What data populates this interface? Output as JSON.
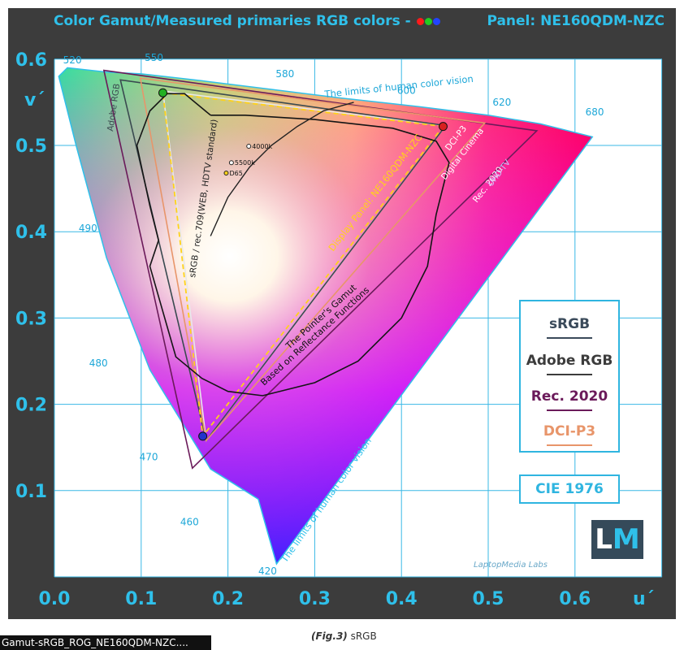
{
  "header": {
    "title": "Color Gamut/Measured primaries RGB colors -",
    "panel": "Panel: NE160QDM-NZC",
    "dot_colors": [
      "#ff1a1a",
      "#22cc22",
      "#2244ff"
    ]
  },
  "chart_data": {
    "type": "scatter",
    "title": "Color Gamut/Measured primaries RGB colors -",
    "xlabel": "u´",
    "ylabel": "v´",
    "xlim": [
      0,
      0.7
    ],
    "ylim": [
      0,
      0.6
    ],
    "x_ticks": [
      "0.0",
      "0.1",
      "0.2",
      "0.3",
      "0.4",
      "0.5",
      "0.6"
    ],
    "y_ticks": [
      "0.1",
      "0.2",
      "0.3",
      "0.4",
      "0.5",
      "0.6"
    ],
    "grid": true,
    "series": [
      {
        "name": "sRGB",
        "color": "#e8e8e8",
        "points": [
          [
            0.451,
            0.523
          ],
          [
            0.125,
            0.563
          ],
          [
            0.175,
            0.158
          ]
        ]
      },
      {
        "name": "Adobe RGB",
        "color": "#3a4a50",
        "points": [
          [
            0.451,
            0.523
          ],
          [
            0.076,
            0.576
          ],
          [
            0.175,
            0.158
          ]
        ]
      },
      {
        "name": "Rec. 2020",
        "color": "#6b1a5a",
        "points": [
          [
            0.556,
            0.517
          ],
          [
            0.057,
            0.587
          ],
          [
            0.159,
            0.126
          ]
        ]
      },
      {
        "name": "DCI-P3",
        "color": "#e8956a",
        "points": [
          [
            0.496,
            0.526
          ],
          [
            0.099,
            0.578
          ],
          [
            0.175,
            0.158
          ]
        ]
      },
      {
        "name": "Display Panel: NE160QDM-NZC",
        "color": "#ffd21a",
        "points": [
          [
            0.448,
            0.522
          ],
          [
            0.125,
            0.561
          ],
          [
            0.171,
            0.163
          ]
        ]
      }
    ],
    "measured_primaries": [
      {
        "color": "#d82020",
        "u": 0.448,
        "v": 0.522
      },
      {
        "color": "#22b022",
        "u": 0.125,
        "v": 0.561
      },
      {
        "color": "#2233cc",
        "u": 0.171,
        "v": 0.163
      }
    ],
    "locus": [
      [
        0.256,
        0.015
      ],
      [
        0.235,
        0.09
      ],
      [
        0.18,
        0.125
      ],
      [
        0.11,
        0.24
      ],
      [
        0.06,
        0.37
      ],
      [
        0.025,
        0.5
      ],
      [
        0.005,
        0.58
      ],
      [
        0.015,
        0.59
      ],
      [
        0.06,
        0.585
      ],
      [
        0.1,
        0.583
      ],
      [
        0.17,
        0.575
      ],
      [
        0.25,
        0.565
      ],
      [
        0.33,
        0.555
      ],
      [
        0.42,
        0.545
      ],
      [
        0.5,
        0.535
      ],
      [
        0.56,
        0.525
      ],
      [
        0.62,
        0.51
      ]
    ],
    "pointer_gamut": [
      [
        0.18,
        0.535
      ],
      [
        0.15,
        0.56
      ],
      [
        0.13,
        0.56
      ],
      [
        0.11,
        0.54
      ],
      [
        0.095,
        0.5
      ],
      [
        0.11,
        0.43
      ],
      [
        0.12,
        0.39
      ],
      [
        0.11,
        0.36
      ],
      [
        0.13,
        0.29
      ],
      [
        0.14,
        0.255
      ],
      [
        0.17,
        0.23
      ],
      [
        0.2,
        0.215
      ],
      [
        0.24,
        0.21
      ],
      [
        0.3,
        0.225
      ],
      [
        0.35,
        0.25
      ],
      [
        0.4,
        0.3
      ],
      [
        0.43,
        0.36
      ],
      [
        0.44,
        0.42
      ],
      [
        0.455,
        0.48
      ],
      [
        0.44,
        0.505
      ],
      [
        0.39,
        0.52
      ],
      [
        0.3,
        0.53
      ],
      [
        0.22,
        0.535
      ],
      [
        0.18,
        0.535
      ]
    ],
    "planckian": [
      [
        0.18,
        0.395
      ],
      [
        0.2,
        0.44
      ],
      [
        0.225,
        0.475
      ],
      [
        0.25,
        0.5
      ],
      [
        0.28,
        0.522
      ],
      [
        0.31,
        0.54
      ],
      [
        0.345,
        0.55
      ]
    ],
    "white_points": [
      {
        "label": "4000k",
        "u": 0.224,
        "v": 0.499
      },
      {
        "label": "5500k",
        "u": 0.204,
        "v": 0.48
      },
      {
        "label": "D65",
        "u": 0.198,
        "v": 0.468
      }
    ],
    "wavelengths": [
      {
        "label": "520",
        "u": 0.01,
        "v": 0.595
      },
      {
        "label": "550",
        "u": 0.104,
        "v": 0.598
      },
      {
        "label": "580",
        "u": 0.255,
        "v": 0.579
      },
      {
        "label": "600",
        "u": 0.395,
        "v": 0.56
      },
      {
        "label": "620",
        "u": 0.505,
        "v": 0.546
      },
      {
        "label": "680",
        "u": 0.612,
        "v": 0.535
      },
      {
        "label": "490",
        "u": 0.028,
        "v": 0.4
      },
      {
        "label": "480",
        "u": 0.04,
        "v": 0.244
      },
      {
        "label": "470",
        "u": 0.098,
        "v": 0.135
      },
      {
        "label": "460",
        "u": 0.145,
        "v": 0.06
      },
      {
        "label": "420",
        "u": 0.235,
        "v": 0.003
      }
    ],
    "annotations": {
      "limits_top": "The limits of human color vision",
      "limits_bottom": "The limits of human color vision",
      "adobe": "Adobe RGB",
      "srgb": "sRGB / rec.709(WEB, HDTV standard)",
      "display": "Display Panel: NE160QDM-NZC",
      "dcip3": "DCI-P3",
      "digital_cinema": "Digital Cinema",
      "rec2020": "Rec. 2020",
      "uhdtv": "UHD-TV",
      "pointer1": "The Pointer's Gamut",
      "pointer2": "Based on Reflectance Functions"
    }
  },
  "legend": {
    "items": [
      {
        "label": "sRGB",
        "color": "#3a4a5a",
        "line": "#3a4a5a"
      },
      {
        "label": "Adobe RGB",
        "color": "#3c3c3c",
        "line": "#3c3c3c"
      },
      {
        "label": "Rec. 2020",
        "color": "#6b1a5a",
        "line": "#6b1a5a"
      },
      {
        "label": "DCI-P3",
        "color": "#e8956a",
        "line": "#e8956a"
      }
    ],
    "space": "CIE 1976"
  },
  "logo": {
    "l": "L",
    "m": "M",
    "labs": "LaptopMedia Labs"
  },
  "footer": {
    "file_tag": "Gamut-sRGB_ROG_NE160QDM-NZC....",
    "caption_fig": "(Fig.3)",
    "caption_text": " sRGB"
  }
}
